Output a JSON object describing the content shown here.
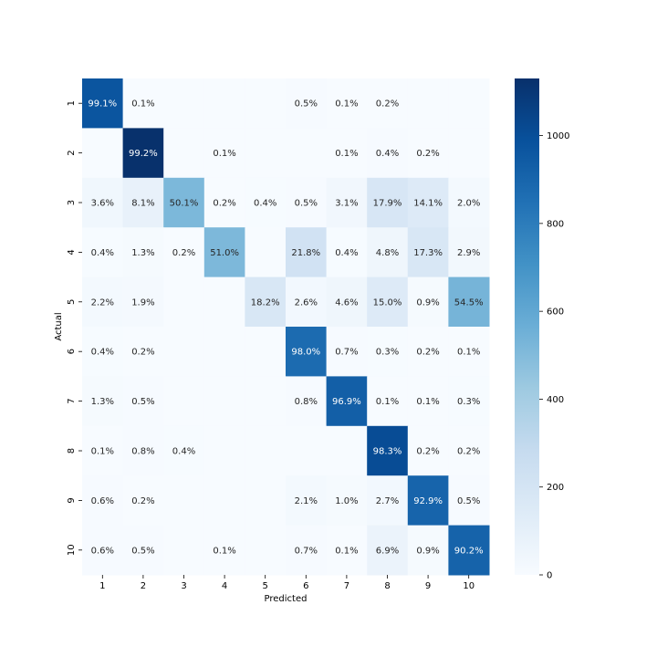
{
  "chart_data": {
    "type": "heatmap",
    "title": "",
    "xlabel": "Predicted",
    "ylabel": "Actual",
    "x_categories": [
      "1",
      "2",
      "3",
      "4",
      "5",
      "6",
      "7",
      "8",
      "9",
      "10"
    ],
    "y_categories": [
      "1",
      "2",
      "3",
      "4",
      "5",
      "6",
      "7",
      "8",
      "9",
      "10"
    ],
    "colormap": "Blues",
    "colorbar": {
      "min": 0,
      "max": 1130,
      "ticks": [
        0,
        200,
        400,
        600,
        800,
        1000
      ],
      "tick_labels": [
        "0",
        "200",
        "400",
        "600",
        "800",
        "1000"
      ]
    },
    "cells": [
      [
        "99.1%",
        "0.1%",
        "",
        "",
        "",
        "0.5%",
        "0.1%",
        "0.2%",
        "",
        ""
      ],
      [
        "",
        "99.2%",
        "",
        "0.1%",
        "",
        "",
        "0.1%",
        "0.4%",
        "0.2%",
        ""
      ],
      [
        "3.6%",
        "8.1%",
        "50.1%",
        "0.2%",
        "0.4%",
        "0.5%",
        "3.1%",
        "17.9%",
        "14.1%",
        "2.0%"
      ],
      [
        "0.4%",
        "1.3%",
        "0.2%",
        "51.0%",
        "",
        "21.8%",
        "0.4%",
        "4.8%",
        "17.3%",
        "2.9%"
      ],
      [
        "2.2%",
        "1.9%",
        "",
        "",
        "18.2%",
        "2.6%",
        "4.6%",
        "15.0%",
        "0.9%",
        "54.5%"
      ],
      [
        "0.4%",
        "0.2%",
        "",
        "",
        "",
        "98.0%",
        "0.7%",
        "0.3%",
        "0.2%",
        "0.1%"
      ],
      [
        "1.3%",
        "0.5%",
        "",
        "",
        "",
        "0.8%",
        "96.9%",
        "0.1%",
        "0.1%",
        "0.3%"
      ],
      [
        "0.1%",
        "0.8%",
        "0.4%",
        "",
        "",
        "",
        "",
        "98.3%",
        "0.2%",
        "0.2%"
      ],
      [
        "0.6%",
        "0.2%",
        "",
        "",
        "",
        "2.1%",
        "1.0%",
        "2.7%",
        "92.9%",
        "0.5%"
      ],
      [
        "0.6%",
        "0.5%",
        "",
        "0.1%",
        "",
        "0.7%",
        "0.1%",
        "6.9%",
        "0.9%",
        "90.2%"
      ]
    ],
    "counts": [
      [
        973,
        1,
        0,
        0,
        0,
        5,
        1,
        2,
        0,
        0
      ],
      [
        0,
        1126,
        0,
        1,
        0,
        0,
        1,
        5,
        2,
        0
      ],
      [
        37,
        84,
        517,
        2,
        4,
        5,
        32,
        185,
        146,
        21
      ],
      [
        4,
        13,
        2,
        515,
        0,
        220,
        4,
        48,
        175,
        29
      ],
      [
        22,
        19,
        0,
        0,
        179,
        26,
        45,
        147,
        9,
        535
      ],
      [
        4,
        2,
        0,
        0,
        0,
        874,
        6,
        3,
        2,
        1
      ],
      [
        12,
        5,
        0,
        0,
        0,
        8,
        928,
        1,
        1,
        3
      ],
      [
        1,
        8,
        4,
        0,
        0,
        0,
        0,
        1010,
        2,
        2
      ],
      [
        6,
        2,
        0,
        0,
        0,
        20,
        10,
        26,
        905,
        5
      ],
      [
        6,
        5,
        0,
        1,
        0,
        7,
        1,
        70,
        9,
        910
      ]
    ]
  }
}
